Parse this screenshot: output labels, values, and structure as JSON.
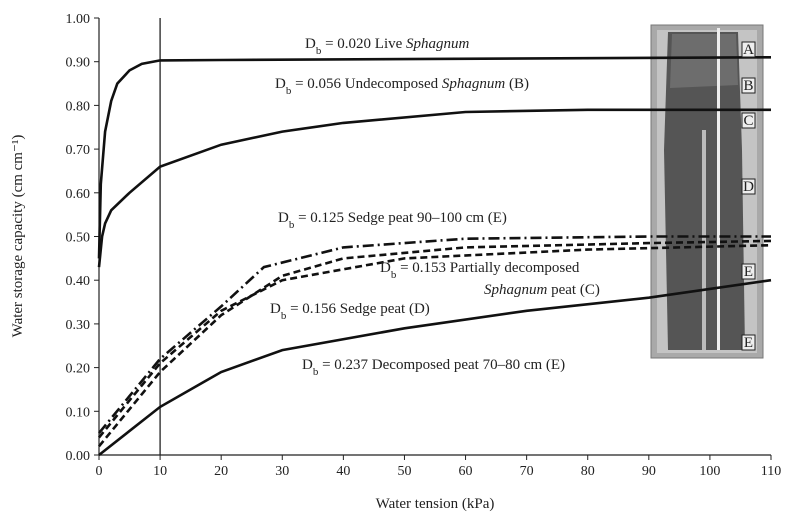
{
  "chart_data": {
    "type": "line",
    "xlabel": "Water tension (kPa)",
    "ylabel": "Water storage capacity (cm cm⁻¹)",
    "xlim": [
      0,
      110
    ],
    "ylim": [
      0,
      1
    ],
    "xticks": [
      0,
      10,
      20,
      30,
      40,
      50,
      60,
      70,
      80,
      90,
      100,
      110
    ],
    "yticks": [
      {
        "value": 0,
        "label": "0.00"
      },
      {
        "value": 0.1,
        "label": "0.10"
      },
      {
        "value": 0.2,
        "label": "0.20"
      },
      {
        "value": 0.3,
        "label": "0.30"
      },
      {
        "value": 0.4,
        "label": "0.40"
      },
      {
        "value": 0.5,
        "label": "0.50"
      },
      {
        "value": 0.6,
        "label": "0.60"
      },
      {
        "value": 0.7,
        "label": "0.70"
      },
      {
        "value": 0.8,
        "label": "0.80"
      },
      {
        "value": 0.9,
        "label": "0.90"
      },
      {
        "value": 1,
        "label": "1.00"
      }
    ],
    "vline": 10,
    "series": [
      {
        "color": "#111",
        "dash": "solid",
        "x": [
          0,
          0.3,
          1,
          2,
          3,
          5,
          7,
          10,
          20,
          50,
          110
        ],
        "values": [
          0.45,
          0.62,
          0.74,
          0.81,
          0.85,
          0.88,
          0.895,
          0.903,
          0.904,
          0.906,
          0.91
        ]
      },
      {
        "color": "#111",
        "dash": "solid",
        "x": [
          0,
          0.5,
          1,
          2,
          5,
          10,
          20,
          30,
          40,
          60,
          80,
          110
        ],
        "values": [
          0.43,
          0.5,
          0.53,
          0.56,
          0.6,
          0.66,
          0.71,
          0.74,
          0.76,
          0.785,
          0.79,
          0.79
        ]
      },
      {
        "color": "#111",
        "dash": "dashdot",
        "x": [
          0,
          10,
          20,
          27,
          40,
          60,
          90,
          110
        ],
        "values": [
          0.05,
          0.22,
          0.34,
          0.43,
          0.475,
          0.495,
          0.5,
          0.5
        ]
      },
      {
        "color": "#111",
        "dash": "dashed",
        "x": [
          0,
          10,
          20,
          30,
          40,
          60,
          90,
          110
        ],
        "values": [
          0.02,
          0.19,
          0.32,
          0.41,
          0.45,
          0.475,
          0.485,
          0.49
        ]
      },
      {
        "color": "#111",
        "dash": "dashed",
        "x": [
          0,
          10,
          20,
          30,
          50,
          80,
          110
        ],
        "values": [
          0.04,
          0.21,
          0.33,
          0.4,
          0.45,
          0.47,
          0.48
        ]
      },
      {
        "color": "#111",
        "dash": "solid",
        "x": [
          0,
          10,
          20,
          30,
          50,
          70,
          90,
          110
        ],
        "values": [
          0,
          0.11,
          0.19,
          0.24,
          0.29,
          0.33,
          0.36,
          0.4
        ]
      }
    ],
    "annotations": [
      {
        "lines": [
          [
            {
              "text": "D"
            },
            {
              "text": "b",
              "style": "sub"
            },
            {
              "text": " = 0.020 Live "
            },
            {
              "text": "Sphagnum",
              "style": "italic"
            }
          ]
        ]
      },
      {
        "lines": [
          [
            {
              "text": "D"
            },
            {
              "text": "b",
              "style": "sub"
            },
            {
              "text": " = 0.056 Undecomposed "
            },
            {
              "text": "Sphagnum",
              "style": "italic"
            },
            {
              "text": " (B)"
            }
          ]
        ]
      },
      {
        "lines": [
          [
            {
              "text": "D"
            },
            {
              "text": "b",
              "style": "sub"
            },
            {
              "text": " = 0.125 Sedge peat 90–100 cm (E)"
            }
          ]
        ]
      },
      {
        "lines": [
          [
            {
              "text": "D"
            },
            {
              "text": "b",
              "style": "sub"
            },
            {
              "text": " = 0.153 Partially decomposed"
            }
          ],
          [
            {
              "text": "Sphagnum",
              "style": "italic"
            },
            {
              "text": " peat (C)"
            }
          ]
        ]
      },
      {
        "lines": [
          [
            {
              "text": "D"
            },
            {
              "text": "b",
              "style": "sub"
            },
            {
              "text": " = 0.156 Sedge peat (D)"
            }
          ]
        ]
      },
      {
        "lines": [
          [
            {
              "text": "D"
            },
            {
              "text": "b",
              "style": "sub"
            },
            {
              "text": " = 0.237 Decomposed peat  70–80 cm (E)"
            }
          ]
        ]
      }
    ],
    "photo_labels": [
      "A",
      "B",
      "C",
      "D",
      "E",
      "E"
    ]
  }
}
